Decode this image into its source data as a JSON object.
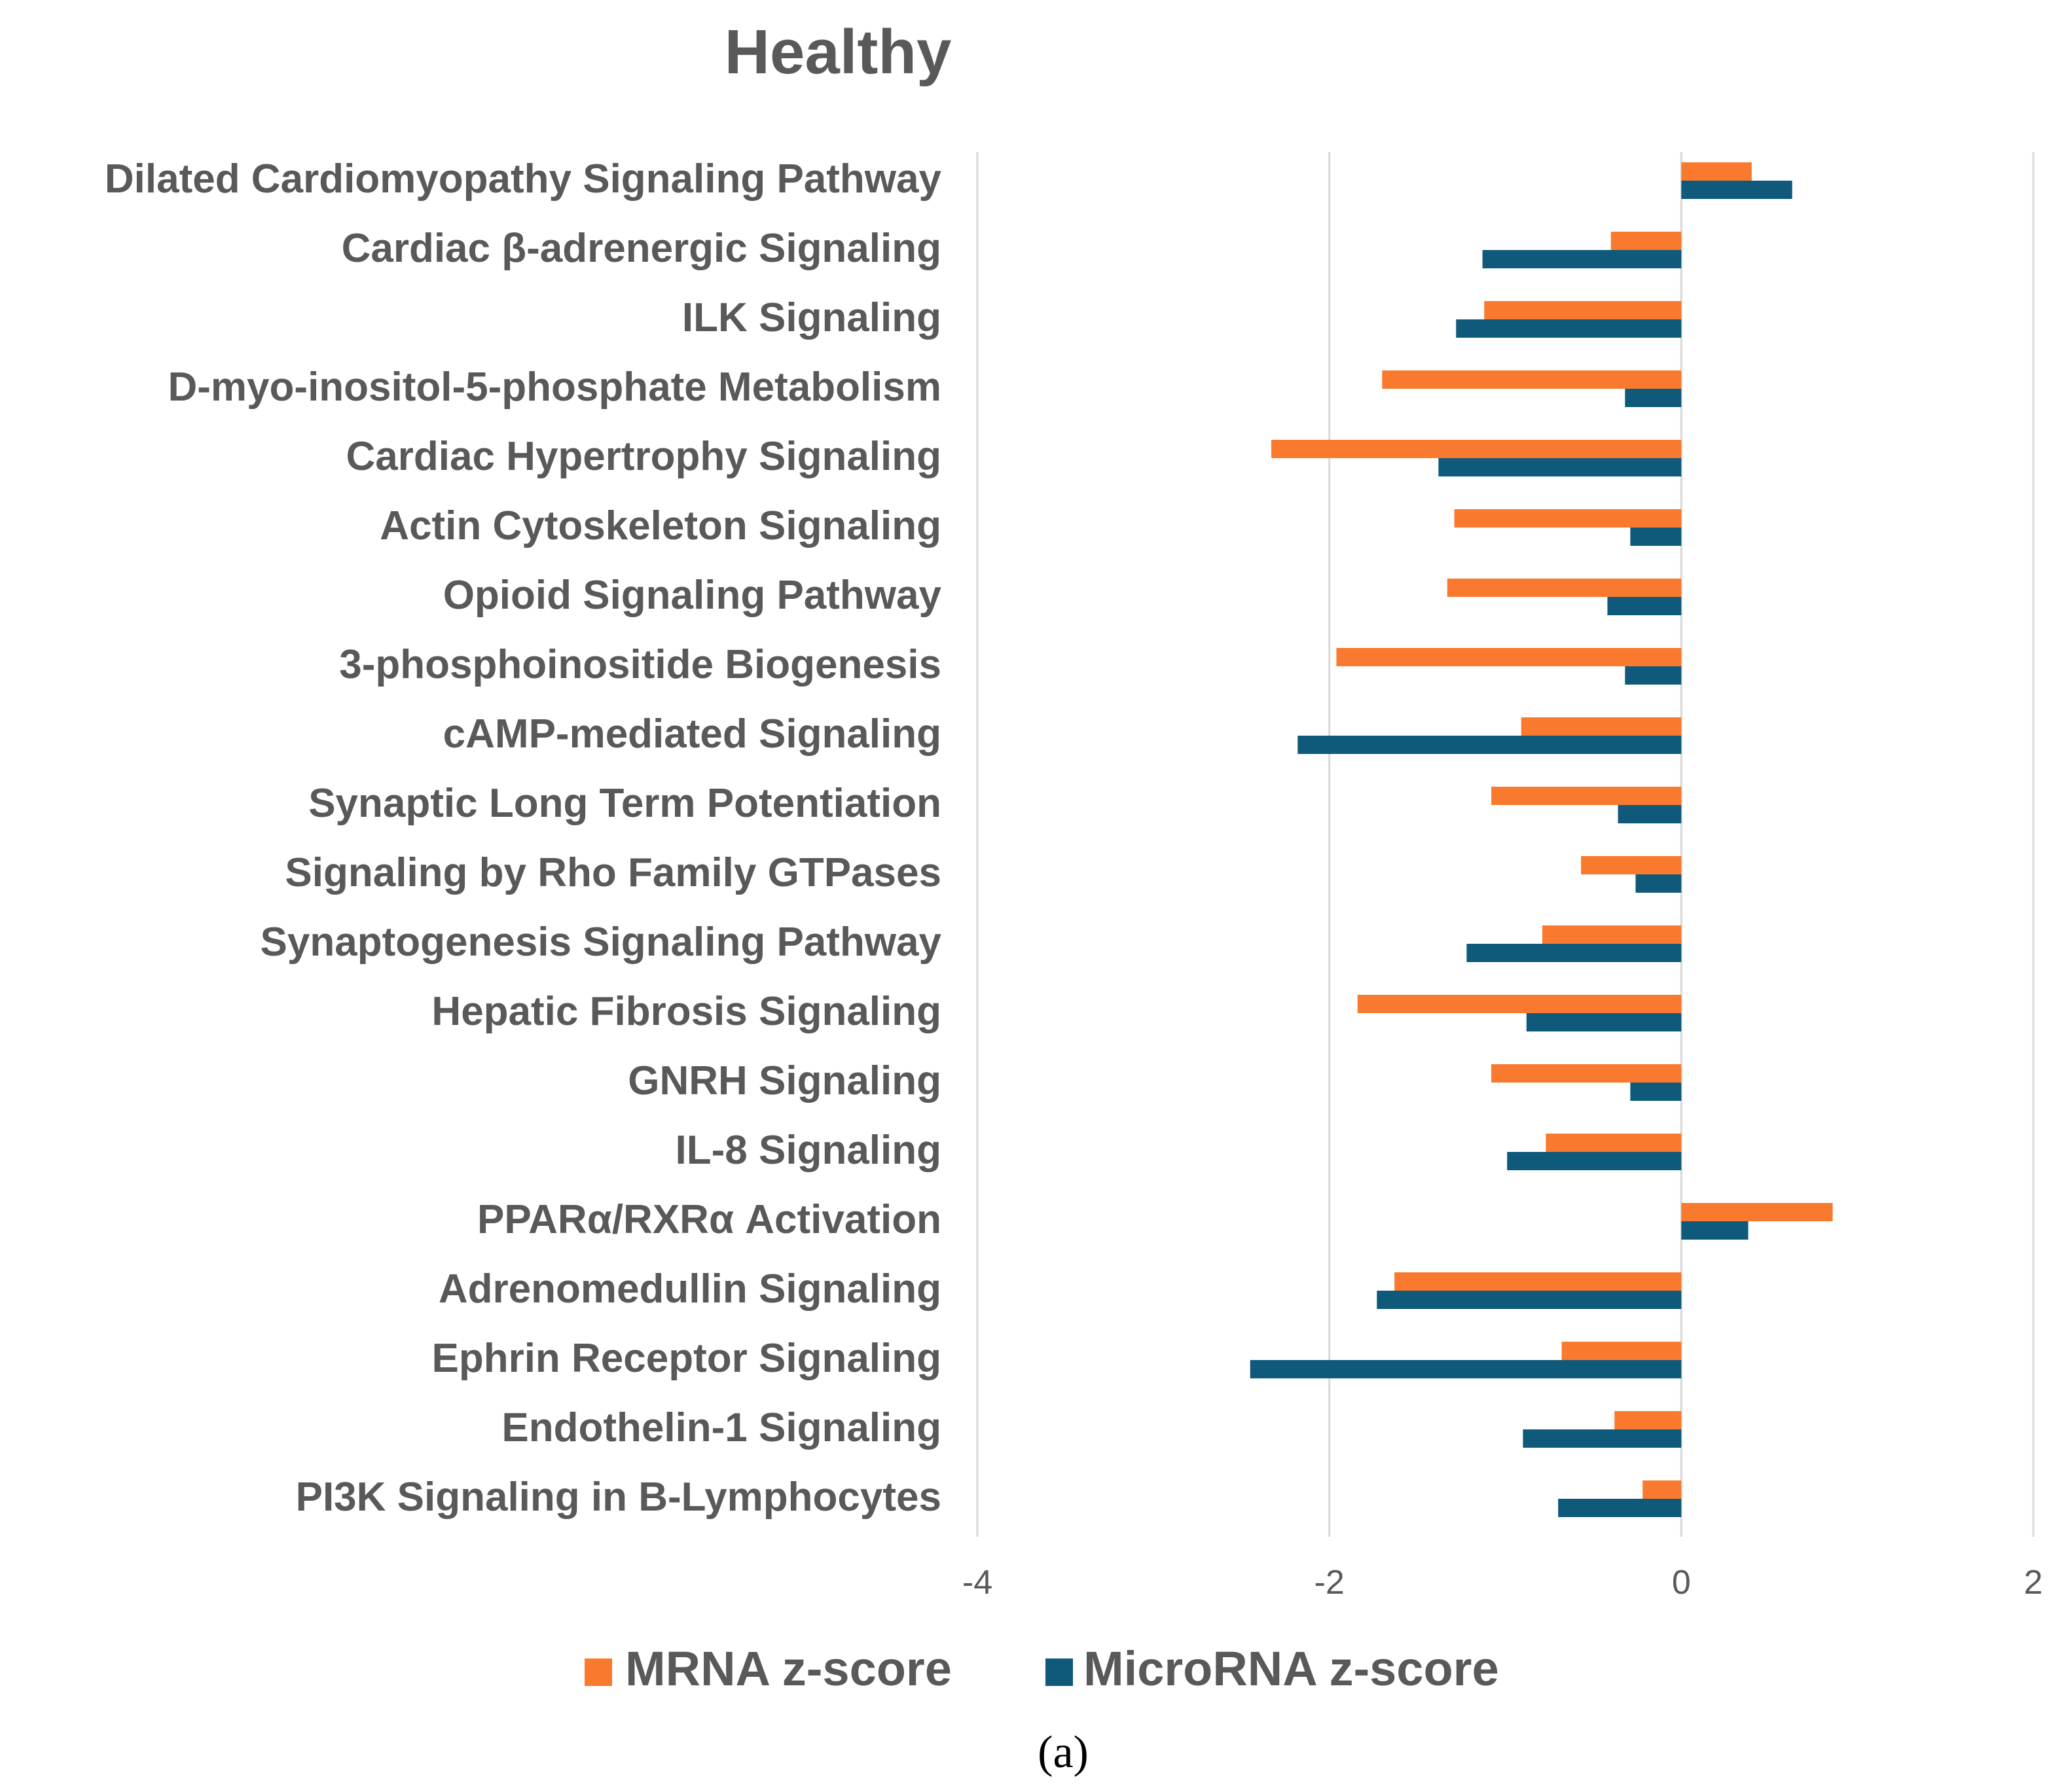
{
  "chart_data": {
    "type": "bar",
    "orientation": "horizontal",
    "title": "Healthy",
    "xlabel": "",
    "ylabel": "",
    "xlim": [
      -4,
      2
    ],
    "x_ticks": [
      "-4",
      "-2",
      "0",
      "2"
    ],
    "grid": "vertical",
    "legend_position": "bottom",
    "caption": "(a)",
    "categories": [
      "Dilated Cardiomyopathy Signaling Pathway",
      "Cardiac β-adrenergic Signaling",
      "ILK Signaling",
      "D-myo-inositol-5-phosphate Metabolism",
      "Cardiac Hypertrophy Signaling",
      "Actin Cytoskeleton Signaling",
      "Opioid Signaling Pathway",
      "3-phosphoinositide Biogenesis",
      "cAMP-mediated Signaling",
      "Synaptic Long Term Potentiation",
      "Signaling by Rho Family GTPases",
      "Synaptogenesis Signaling Pathway",
      "Hepatic Fibrosis Signaling",
      "GNRH Signaling",
      "IL-8 Signaling",
      "PPARα/RXRα Activation",
      "Adrenomedullin Signaling",
      "Ephrin Receptor Signaling",
      "Endothelin-1 Signaling",
      "PI3K Signaling in B-Lymphocytes"
    ],
    "series": [
      {
        "name": "MRNA z-score",
        "color": "#F97A2E",
        "values": [
          0.4,
          -0.4,
          -1.12,
          -1.7,
          -2.33,
          -1.29,
          -1.33,
          -1.96,
          -0.91,
          -1.08,
          -0.57,
          -0.79,
          -1.84,
          -1.08,
          -0.77,
          0.86,
          -1.63,
          -0.68,
          -0.38,
          -0.22
        ]
      },
      {
        "name": "MicroRNA z-score",
        "color": "#0F5A7A",
        "values": [
          0.63,
          -1.13,
          -1.28,
          -0.32,
          -1.38,
          -0.29,
          -0.42,
          -0.32,
          -2.18,
          -0.36,
          -0.26,
          -1.22,
          -0.88,
          -0.29,
          -0.99,
          0.38,
          -1.73,
          -2.45,
          -0.9,
          -0.7
        ]
      }
    ]
  }
}
